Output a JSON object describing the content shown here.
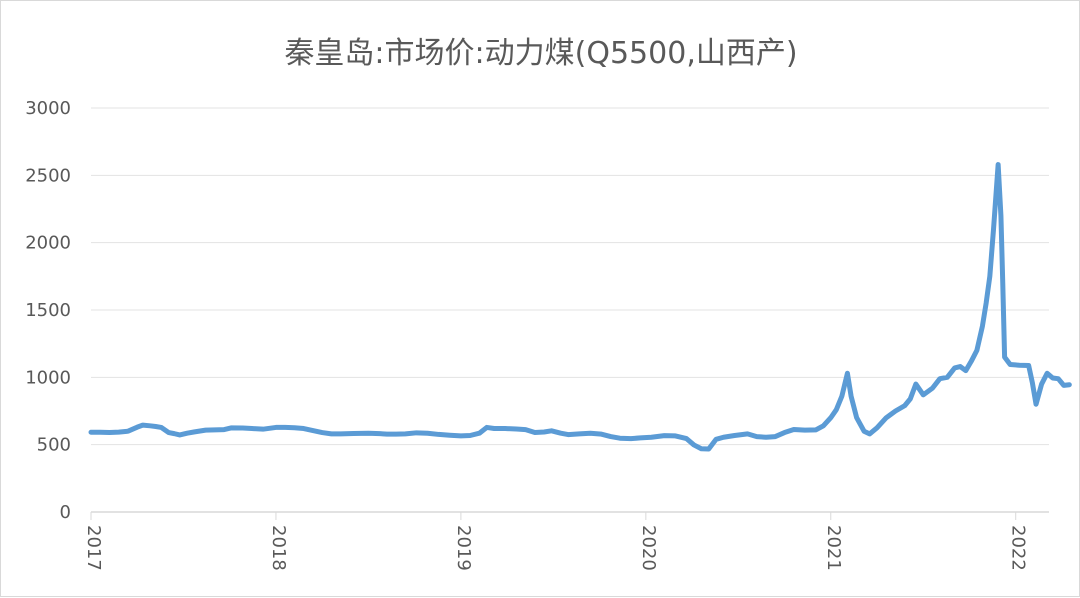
{
  "chart_data": {
    "type": "line",
    "title": "秦皇岛:市场价:动力煤(Q5500,山西产)",
    "xlabel": "",
    "ylabel": "",
    "xlim": [
      2017,
      2022.18
    ],
    "ylim": [
      0,
      3000
    ],
    "yticks": [
      0,
      500,
      1000,
      1500,
      2000,
      2500,
      3000
    ],
    "xtick_labels": [
      "2017",
      "2018",
      "2019",
      "2020",
      "2021",
      "2022"
    ],
    "grid": "horizontal",
    "series": [
      {
        "color": "#5b9bd5",
        "points": [
          [
            2017.0,
            592
          ],
          [
            2017.05,
            592
          ],
          [
            2017.1,
            590
          ],
          [
            2017.15,
            593
          ],
          [
            2017.2,
            600
          ],
          [
            2017.25,
            630
          ],
          [
            2017.28,
            645
          ],
          [
            2017.32,
            640
          ],
          [
            2017.35,
            635
          ],
          [
            2017.38,
            628
          ],
          [
            2017.42,
            590
          ],
          [
            2017.45,
            582
          ],
          [
            2017.48,
            572
          ],
          [
            2017.52,
            585
          ],
          [
            2017.56,
            595
          ],
          [
            2017.62,
            608
          ],
          [
            2017.67,
            610
          ],
          [
            2017.72,
            612
          ],
          [
            2017.76,
            625
          ],
          [
            2017.82,
            624
          ],
          [
            2017.87,
            620
          ],
          [
            2017.93,
            615
          ],
          [
            2018.0,
            628
          ],
          [
            2018.05,
            628
          ],
          [
            2018.1,
            626
          ],
          [
            2018.15,
            620
          ],
          [
            2018.2,
            605
          ],
          [
            2018.25,
            590
          ],
          [
            2018.3,
            580
          ],
          [
            2018.35,
            580
          ],
          [
            2018.42,
            583
          ],
          [
            2018.5,
            585
          ],
          [
            2018.56,
            582
          ],
          [
            2018.6,
            578
          ],
          [
            2018.65,
            578
          ],
          [
            2018.7,
            580
          ],
          [
            2018.76,
            588
          ],
          [
            2018.82,
            585
          ],
          [
            2018.88,
            576
          ],
          [
            2018.94,
            570
          ],
          [
            2019.0,
            565
          ],
          [
            2019.05,
            568
          ],
          [
            2019.1,
            585
          ],
          [
            2019.14,
            628
          ],
          [
            2019.18,
            620
          ],
          [
            2019.24,
            620
          ],
          [
            2019.3,
            616
          ],
          [
            2019.35,
            612
          ],
          [
            2019.4,
            590
          ],
          [
            2019.45,
            594
          ],
          [
            2019.49,
            603
          ],
          [
            2019.54,
            585
          ],
          [
            2019.58,
            575
          ],
          [
            2019.64,
            580
          ],
          [
            2019.7,
            585
          ],
          [
            2019.76,
            578
          ],
          [
            2019.81,
            560
          ],
          [
            2019.86,
            548
          ],
          [
            2019.92,
            545
          ],
          [
            2019.97,
            550
          ],
          [
            2020.03,
            555
          ],
          [
            2020.1,
            567
          ],
          [
            2020.16,
            565
          ],
          [
            2020.22,
            545
          ],
          [
            2020.26,
            498
          ],
          [
            2020.3,
            470
          ],
          [
            2020.34,
            468
          ],
          [
            2020.38,
            540
          ],
          [
            2020.42,
            555
          ],
          [
            2020.48,
            568
          ],
          [
            2020.55,
            580
          ],
          [
            2020.6,
            560
          ],
          [
            2020.65,
            555
          ],
          [
            2020.7,
            560
          ],
          [
            2020.75,
            590
          ],
          [
            2020.8,
            613
          ],
          [
            2020.86,
            608
          ],
          [
            2020.92,
            610
          ],
          [
            2020.96,
            640
          ],
          [
            2021.0,
            700
          ],
          [
            2021.03,
            760
          ],
          [
            2021.06,
            860
          ],
          [
            2021.09,
            1030
          ],
          [
            2021.11,
            860
          ],
          [
            2021.14,
            700
          ],
          [
            2021.18,
            600
          ],
          [
            2021.21,
            580
          ],
          [
            2021.25,
            625
          ],
          [
            2021.3,
            700
          ],
          [
            2021.35,
            750
          ],
          [
            2021.4,
            790
          ],
          [
            2021.43,
            840
          ],
          [
            2021.46,
            950
          ],
          [
            2021.5,
            870
          ],
          [
            2021.55,
            920
          ],
          [
            2021.59,
            990
          ],
          [
            2021.63,
            1000
          ],
          [
            2021.67,
            1070
          ],
          [
            2021.7,
            1080
          ],
          [
            2021.73,
            1050
          ],
          [
            2021.76,
            1120
          ],
          [
            2021.79,
            1200
          ],
          [
            2021.82,
            1380
          ],
          [
            2021.84,
            1550
          ],
          [
            2021.86,
            1750
          ],
          [
            2021.88,
            2100
          ],
          [
            2021.905,
            2580
          ],
          [
            2021.92,
            2200
          ],
          [
            2021.93,
            1700
          ],
          [
            2021.94,
            1150
          ],
          [
            2021.97,
            1095
          ],
          [
            2022.02,
            1090
          ],
          [
            2022.07,
            1088
          ],
          [
            2022.09,
            960
          ],
          [
            2022.11,
            800
          ],
          [
            2022.14,
            950
          ],
          [
            2022.17,
            1030
          ],
          [
            2022.2,
            995
          ],
          [
            2022.23,
            990
          ],
          [
            2022.26,
            940
          ],
          [
            2022.29,
            945
          ]
        ]
      }
    ]
  }
}
